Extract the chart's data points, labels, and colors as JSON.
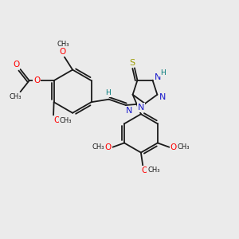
{
  "bg_color": "#ebebeb",
  "bond_color": "#1a1a1a",
  "bond_width": 1.3,
  "fig_size": [
    3.0,
    3.0
  ],
  "dpi": 100,
  "xlim": [
    0,
    10
  ],
  "ylim": [
    0,
    10
  ]
}
